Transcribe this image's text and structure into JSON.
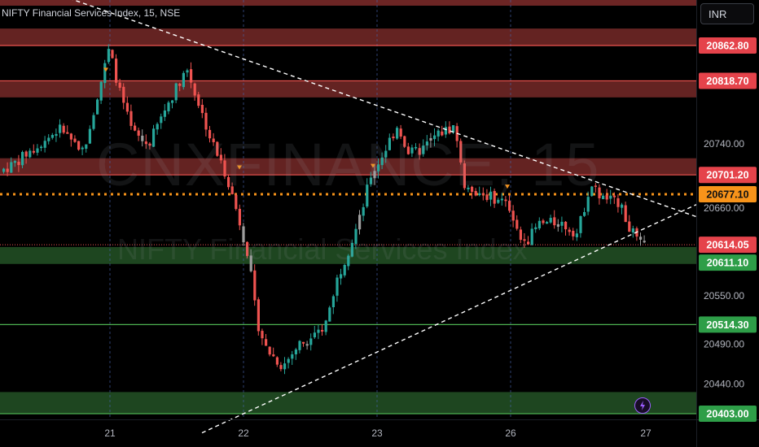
{
  "header": {
    "title": "NIFTY Financial Services Index, 15, NSE",
    "currency_button": "INR"
  },
  "watermark": {
    "symbol": "CNXFINANCE, 15",
    "name": "NIFTY Financial Services Index"
  },
  "colors": {
    "background": "#000000",
    "bull": "#26a69a",
    "bear": "#ef5350",
    "neutral": "#9e9e9e",
    "resistance": "#ef5350",
    "support": "#4caf50",
    "highlight_orange": "#f7931a",
    "alert_accent": "#9c5cff"
  },
  "chart_data": {
    "type": "candlestick",
    "x_ticks": [
      "21",
      "22",
      "23",
      "26",
      "27"
    ],
    "y_ticks": [
      "20740.00",
      "20660.00",
      "20550.00",
      "20490.00",
      "20440.00"
    ],
    "ylim": [
      20400,
      20905
    ],
    "price_labels": [
      {
        "value": "20862.80",
        "kind": "resistance"
      },
      {
        "value": "20818.70",
        "kind": "resistance"
      },
      {
        "value": "20701.20",
        "kind": "resistance"
      },
      {
        "value": "20677.10",
        "kind": "highlight"
      },
      {
        "value": "20614.05",
        "kind": "resistance"
      },
      {
        "value": "20611.10",
        "kind": "support"
      },
      {
        "value": "20514.30",
        "kind": "support"
      },
      {
        "value": "20403.00",
        "kind": "support"
      }
    ],
    "resistance_zones": [
      [
        20862.8,
        20884
      ],
      [
        20798,
        20818.7
      ],
      [
        20701.2,
        20722
      ]
    ],
    "support_zones": [
      [
        20590,
        20611.1
      ],
      [
        20403,
        20430
      ]
    ],
    "support_lines": [
      20514.3,
      20403.0
    ],
    "dashed_level": 20677.1,
    "current_price": 20614.05,
    "trendlines": [
      {
        "name": "descending",
        "from": [
          "21",
          20904
        ],
        "to": [
          "27",
          20671
        ]
      },
      {
        "name": "ascending",
        "from": [
          "22",
          20403
        ],
        "to": [
          "27",
          20635
        ]
      }
    ],
    "session_markers": [
      "21",
      "22",
      "23",
      "26"
    ]
  }
}
